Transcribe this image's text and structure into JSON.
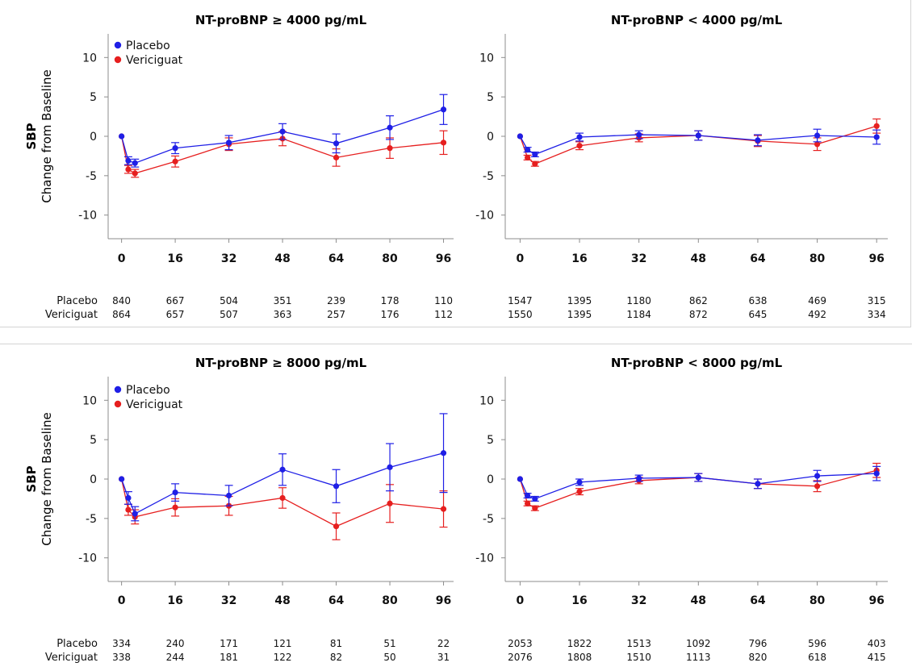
{
  "colors": {
    "placebo": "#1f1fe6",
    "vericiguat": "#e61f1f",
    "axis": "#8c8c8c"
  },
  "y_axis": {
    "title_bold": "SBP",
    "title": "Change from Baseline"
  },
  "count_labels": [
    "Placebo",
    "Vericiguat"
  ],
  "chart_data": [
    {
      "type": "line",
      "title": "NT-proBNP ≥ 4000 pg/mL",
      "ylabel": "SBP Change from Baseline",
      "xlabel": "",
      "ylim": [
        -13,
        13
      ],
      "yticks": [
        -10,
        -5,
        0,
        5,
        10
      ],
      "xlim": [
        -4,
        99
      ],
      "xticks": [
        0,
        16,
        32,
        48,
        64,
        80,
        96
      ],
      "legend": "top-left",
      "series": [
        {
          "name": "Placebo",
          "x": [
            0,
            2,
            4,
            16,
            32,
            48,
            64,
            80,
            96
          ],
          "y": [
            0,
            -3.1,
            -3.4,
            -1.5,
            -0.8,
            0.6,
            -0.9,
            1.1,
            3.4
          ],
          "err": [
            0,
            0.5,
            0.5,
            0.7,
            0.9,
            1.0,
            1.2,
            1.5,
            1.9
          ]
        },
        {
          "name": "Vericiguat",
          "x": [
            0,
            2,
            4,
            16,
            32,
            48,
            64,
            80,
            96
          ],
          "y": [
            0,
            -4.2,
            -4.7,
            -3.2,
            -1.0,
            -0.3,
            -2.7,
            -1.5,
            -0.8
          ],
          "err": [
            0,
            0.5,
            0.5,
            0.7,
            0.8,
            0.9,
            1.1,
            1.3,
            1.5
          ]
        }
      ],
      "counts": {
        "Placebo": [
          840,
          667,
          504,
          351,
          239,
          178,
          110
        ],
        "Vericiguat": [
          864,
          657,
          507,
          363,
          257,
          176,
          112
        ]
      }
    },
    {
      "type": "line",
      "title": "NT-proBNP < 4000 pg/mL",
      "xlabel": "",
      "ylim": [
        -13,
        13
      ],
      "yticks": [
        -10,
        -5,
        0,
        5,
        10
      ],
      "xlim": [
        -4,
        99
      ],
      "xticks": [
        0,
        16,
        32,
        48,
        64,
        80,
        96
      ],
      "legend": "none",
      "series": [
        {
          "name": "Placebo",
          "x": [
            0,
            2,
            4,
            16,
            32,
            48,
            64,
            80,
            96
          ],
          "y": [
            0,
            -1.7,
            -2.3,
            -0.1,
            0.2,
            0.1,
            -0.5,
            0.1,
            -0.1
          ],
          "err": [
            0,
            0.3,
            0.3,
            0.5,
            0.5,
            0.6,
            0.7,
            0.8,
            0.9
          ]
        },
        {
          "name": "Vericiguat",
          "x": [
            0,
            2,
            4,
            16,
            32,
            48,
            64,
            80,
            96
          ],
          "y": [
            0,
            -2.7,
            -3.5,
            -1.2,
            -0.2,
            0.1,
            -0.6,
            -1.0,
            1.3
          ],
          "err": [
            0,
            0.3,
            0.3,
            0.5,
            0.5,
            0.6,
            0.7,
            0.8,
            0.9
          ]
        }
      ],
      "counts": {
        "Placebo": [
          1547,
          1395,
          1180,
          862,
          638,
          469,
          315
        ],
        "Vericiguat": [
          1550,
          1395,
          1184,
          872,
          645,
          492,
          334
        ]
      }
    },
    {
      "type": "line",
      "title": "NT-proBNP ≥ 8000 pg/mL",
      "ylabel": "SBP Change from Baseline",
      "xlabel": "",
      "ylim": [
        -13,
        13
      ],
      "yticks": [
        -10,
        -5,
        0,
        5,
        10
      ],
      "xlim": [
        -4,
        99
      ],
      "xticks": [
        0,
        16,
        32,
        48,
        64,
        80,
        96
      ],
      "legend": "top-left",
      "series": [
        {
          "name": "Placebo",
          "x": [
            0,
            2,
            4,
            16,
            32,
            48,
            64,
            80,
            96
          ],
          "y": [
            0,
            -2.4,
            -4.4,
            -1.7,
            -2.1,
            1.2,
            -0.9,
            1.5,
            3.3
          ],
          "err": [
            0,
            0.8,
            0.9,
            1.1,
            1.3,
            2.0,
            2.1,
            3.0,
            5.0
          ]
        },
        {
          "name": "Vericiguat",
          "x": [
            0,
            2,
            4,
            16,
            32,
            48,
            64,
            80,
            96
          ],
          "y": [
            0,
            -3.9,
            -4.8,
            -3.6,
            -3.4,
            -2.4,
            -6.0,
            -3.1,
            -3.8
          ],
          "err": [
            0,
            0.7,
            0.9,
            1.1,
            1.2,
            1.3,
            1.7,
            2.4,
            2.3
          ]
        }
      ],
      "counts": {
        "Placebo": [
          334,
          240,
          171,
          121,
          81,
          51,
          22
        ],
        "Vericiguat": [
          338,
          244,
          181,
          122,
          82,
          50,
          31
        ]
      }
    },
    {
      "type": "line",
      "title": "NT-proBNP < 8000 pg/mL",
      "xlabel": "",
      "ylim": [
        -13,
        13
      ],
      "yticks": [
        -10,
        -5,
        0,
        5,
        10
      ],
      "xlim": [
        -4,
        99
      ],
      "xticks": [
        0,
        16,
        32,
        48,
        64,
        80,
        96
      ],
      "legend": "none",
      "series": [
        {
          "name": "Placebo",
          "x": [
            0,
            2,
            4,
            16,
            32,
            48,
            64,
            80,
            96
          ],
          "y": [
            0,
            -2.1,
            -2.5,
            -0.4,
            0.1,
            0.2,
            -0.6,
            0.4,
            0.7
          ],
          "err": [
            0,
            0.3,
            0.3,
            0.4,
            0.4,
            0.5,
            0.6,
            0.7,
            0.9
          ]
        },
        {
          "name": "Vericiguat",
          "x": [
            0,
            2,
            4,
            16,
            32,
            48,
            64,
            80,
            96
          ],
          "y": [
            0,
            -3.1,
            -3.7,
            -1.6,
            -0.2,
            0.2,
            -0.6,
            -0.9,
            1.1
          ],
          "err": [
            0,
            0.3,
            0.3,
            0.4,
            0.4,
            0.5,
            0.6,
            0.7,
            0.9
          ]
        }
      ],
      "counts": {
        "Placebo": [
          2053,
          1822,
          1513,
          1092,
          796,
          596,
          403
        ],
        "Vericiguat": [
          2076,
          1808,
          1510,
          1113,
          820,
          618,
          415
        ]
      }
    }
  ]
}
